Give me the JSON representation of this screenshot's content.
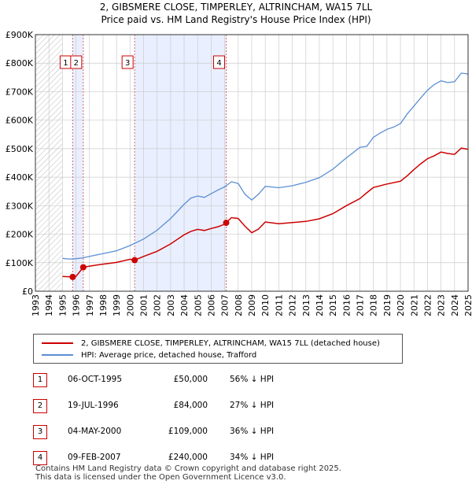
{
  "title_line1": "2, GIBSMERE CLOSE, TIMPERLEY, ALTRINCHAM, WA15 7LL",
  "title_line2": "Price paid vs. HM Land Registry's House Price Index (HPI)",
  "chart_data": {
    "type": "line",
    "xlim": [
      1993.0,
      2025.0
    ],
    "ylim": [
      0,
      900000
    ],
    "y_ticks": [
      0,
      100000,
      200000,
      300000,
      400000,
      500000,
      600000,
      700000,
      800000,
      900000
    ],
    "y_tick_labels": [
      "£0",
      "£100K",
      "£200K",
      "£300K",
      "£400K",
      "£500K",
      "£600K",
      "£700K",
      "£800K",
      "£900K"
    ],
    "x_ticks": [
      1993,
      1994,
      1995,
      1996,
      1997,
      1998,
      1999,
      2000,
      2001,
      2002,
      2003,
      2004,
      2005,
      2006,
      2007,
      2008,
      2009,
      2010,
      2011,
      2012,
      2013,
      2014,
      2015,
      2016,
      2017,
      2018,
      2019,
      2020,
      2021,
      2022,
      2023,
      2024,
      2025
    ],
    "data_start": 1995.0,
    "hatched_before": 1995.0,
    "shaded_ranges": [
      [
        1995.76,
        1996.54
      ],
      [
        2000.34,
        2007.11
      ]
    ],
    "colors": {
      "property": "#cc0000",
      "hpi": "#5b8fd4",
      "shade": "#e9efff",
      "grid": "#cccccc"
    },
    "series": [
      {
        "name": "2, GIBSMERE CLOSE, TIMPERLEY, ALTRINCHAM, WA15 7LL (detached house)",
        "x": [
          1995.0,
          1995.76,
          1996.0,
          1996.54,
          1997.0,
          1998.0,
          1999.0,
          2000.0,
          2000.34,
          2001.0,
          2002.0,
          2003.0,
          2004.0,
          2004.5,
          2005.0,
          2005.5,
          2006.0,
          2006.5,
          2007.0,
          2007.11,
          2007.5,
          2008.0,
          2008.5,
          2009.0,
          2009.5,
          2010.0,
          2011.0,
          2012.0,
          2013.0,
          2014.0,
          2015.0,
          2016.0,
          2017.0,
          2017.5,
          2018.0,
          2019.0,
          2020.0,
          2020.5,
          2021.0,
          2021.5,
          2022.0,
          2022.5,
          2023.0,
          2023.5,
          2024.0,
          2024.5,
          2025.0
        ],
        "values": [
          52000,
          50000,
          52000,
          84000,
          88000,
          95000,
          101000,
          112000,
          109000,
          122000,
          140000,
          166000,
          198000,
          210000,
          217000,
          213000,
          220000,
          226000,
          235000,
          240000,
          258000,
          255000,
          228000,
          205000,
          218000,
          243000,
          237000,
          241000,
          245000,
          254000,
          272000,
          300000,
          325000,
          345000,
          364000,
          376000,
          386000,
          405000,
          427000,
          447000,
          465000,
          475000,
          488000,
          483000,
          480000,
          502000,
          498000
        ]
      },
      {
        "name": "HPI: Average price, detached house, Trafford",
        "x": [
          1995.0,
          1995.5,
          1996.0,
          1996.5,
          1997.0,
          1998.0,
          1999.0,
          2000.0,
          2001.0,
          2002.0,
          2003.0,
          2004.0,
          2004.5,
          2005.0,
          2005.5,
          2006.0,
          2006.5,
          2007.0,
          2007.5,
          2008.0,
          2008.5,
          2009.0,
          2009.5,
          2010.0,
          2011.0,
          2012.0,
          2013.0,
          2014.0,
          2015.0,
          2016.0,
          2016.5,
          2017.0,
          2017.5,
          2018.0,
          2018.5,
          2019.0,
          2019.5,
          2020.0,
          2020.5,
          2021.0,
          2021.5,
          2022.0,
          2022.5,
          2023.0,
          2023.5,
          2024.0,
          2024.5,
          2025.0
        ],
        "values": [
          115000,
          113000,
          114000,
          117000,
          122000,
          132000,
          142000,
          160000,
          183000,
          214000,
          255000,
          305000,
          327000,
          334000,
          329000,
          342000,
          355000,
          366000,
          384000,
          378000,
          340000,
          320000,
          340000,
          368000,
          363000,
          370000,
          382000,
          398000,
          428000,
          468000,
          486000,
          505000,
          508000,
          540000,
          555000,
          568000,
          576000,
          588000,
          622000,
          650000,
          678000,
          705000,
          725000,
          738000,
          732000,
          735000,
          765000,
          762000
        ]
      }
    ],
    "markers": [
      {
        "id": "1",
        "x": 1995.76,
        "y": 50000
      },
      {
        "id": "2",
        "x": 1996.54,
        "y": 84000
      },
      {
        "id": "3",
        "x": 2000.34,
        "y": 109000
      },
      {
        "id": "4",
        "x": 2007.11,
        "y": 240000
      }
    ]
  },
  "legend": {
    "property_label": "2, GIBSMERE CLOSE, TIMPERLEY, ALTRINCHAM, WA15 7LL (detached house)",
    "hpi_label": "HPI: Average price, detached house, Trafford"
  },
  "sales": [
    {
      "num": "1",
      "date": "06-OCT-1995",
      "price": "£50,000",
      "hpi": "56% ↓ HPI"
    },
    {
      "num": "2",
      "date": "19-JUL-1996",
      "price": "£84,000",
      "hpi": "27% ↓ HPI"
    },
    {
      "num": "3",
      "date": "04-MAY-2000",
      "price": "£109,000",
      "hpi": "36% ↓ HPI"
    },
    {
      "num": "4",
      "date": "09-FEB-2007",
      "price": "£240,000",
      "hpi": "34% ↓ HPI"
    }
  ],
  "footer": {
    "line1": "Contains HM Land Registry data © Crown copyright and database right 2025.",
    "line2": "This data is licensed under the Open Government Licence v3.0."
  }
}
